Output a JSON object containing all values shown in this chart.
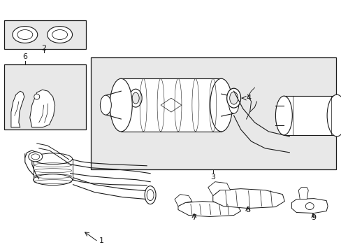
{
  "bg_color": "#ffffff",
  "box_fill": "#e8e8e8",
  "lc": "#1a1a1a",
  "lw": 0.7,
  "fs": 8
}
